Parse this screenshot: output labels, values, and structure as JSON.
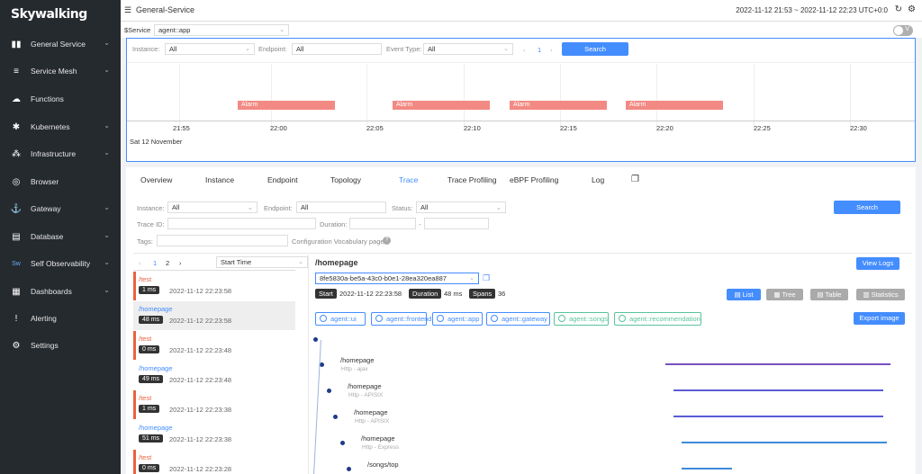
{
  "brand": "Skywalking",
  "sidebar": {
    "items": [
      {
        "label": "General Service",
        "icon": "general-service-icon",
        "glyph": "▮▮",
        "chev": true
      },
      {
        "label": "Service Mesh",
        "icon": "service-mesh-icon",
        "glyph": "≡",
        "chev": true
      },
      {
        "label": "Functions",
        "icon": "cloud-icon",
        "glyph": "☁",
        "chev": false
      },
      {
        "label": "Kubernetes",
        "icon": "kubernetes-icon",
        "glyph": "✱",
        "chev": true
      },
      {
        "label": "Infrastructure",
        "icon": "infrastructure-icon",
        "glyph": "⁂",
        "chev": true
      },
      {
        "label": "Browser",
        "icon": "globe-icon",
        "glyph": "◎",
        "chev": false
      },
      {
        "label": "Gateway",
        "icon": "gateway-icon",
        "glyph": "⚓",
        "chev": true
      },
      {
        "label": "Database",
        "icon": "database-icon",
        "glyph": "▤",
        "chev": true
      },
      {
        "label": "Self Observability",
        "icon": "self-observability-icon",
        "glyph": "Sw",
        "chev": true
      },
      {
        "label": "Dashboards",
        "icon": "dashboards-icon",
        "glyph": "▦",
        "chev": true
      },
      {
        "label": "Alerting",
        "icon": "alerting-icon",
        "glyph": "!",
        "chev": false
      },
      {
        "label": "Settings",
        "icon": "settings-icon",
        "glyph": "⚙",
        "chev": false
      }
    ]
  },
  "topbar": {
    "title": "General-Service",
    "time_range": "2022-11-12 21:53 ~ 2022-11-12 22:23",
    "timezone": "UTC+0:0"
  },
  "service_bar": {
    "label": "$Service",
    "value": "agent::app",
    "toggle_label": "V"
  },
  "events": {
    "instance_label": "Instance:",
    "instance_value": "All",
    "endpoint_label": "Endpoint:",
    "endpoint_value": "All",
    "event_type_label": "Event Type:",
    "event_type_value": "All",
    "page": "1",
    "search_label": "Search",
    "alarms": [
      "Alarm",
      "Alarm",
      "Alarm",
      "Alarm"
    ],
    "ticks": [
      "21:55",
      "22:00",
      "22:05",
      "22:10",
      "22:15",
      "22:20",
      "22:25",
      "22:30"
    ],
    "date_label": "Sat 12 November"
  },
  "tabs": [
    "Overview",
    "Instance",
    "Endpoint",
    "Topology",
    "Trace",
    "Trace Profiling",
    "eBPF Profiling",
    "Log"
  ],
  "active_tab": "Trace",
  "trace_filters": {
    "instance_label": "Instance:",
    "instance_value": "All",
    "endpoint_label": "Endpoint:",
    "endpoint_value": "All",
    "status_label": "Status:",
    "status_value": "All",
    "search_label": "Search",
    "trace_id_label": "Trace ID:",
    "duration_label": "Duration:",
    "duration_sep": "-",
    "tags_label": "Tags:",
    "vocab_label": "Configuration Vocabulary page"
  },
  "trace_list": {
    "page1": "1",
    "page2": "2",
    "sort_value": "Start Time",
    "items": [
      {
        "endpoint": "/test",
        "duration": "1 ms",
        "time": "2022-11-12 22:23:58",
        "error": true
      },
      {
        "endpoint": "/homepage",
        "duration": "48 ms",
        "time": "2022-11-12 22:23:58",
        "error": false
      },
      {
        "endpoint": "/test",
        "duration": "0 ms",
        "time": "2022-11-12 22:23:48",
        "error": true
      },
      {
        "endpoint": "/homepage",
        "duration": "49 ms",
        "time": "2022-11-12 22:23:48",
        "error": false
      },
      {
        "endpoint": "/test",
        "duration": "1 ms",
        "time": "2022-11-12 22:23:38",
        "error": true
      },
      {
        "endpoint": "/homepage",
        "duration": "51 ms",
        "time": "2022-11-12 22:23:38",
        "error": false
      },
      {
        "endpoint": "/test",
        "duration": "0 ms",
        "time": "2022-11-12 22:23:28",
        "error": true
      }
    ]
  },
  "trace_detail": {
    "endpoint": "/homepage",
    "view_logs_label": "View Logs",
    "trace_id": "8fe5830a-be5a-43c0-b0e1-28ea320ea887",
    "start_label": "Start",
    "start_value": "2022-11-12 22:23:58",
    "duration_label": "Duration",
    "duration_value": "48 ms",
    "spans_label": "Spans",
    "spans_value": "36",
    "view_buttons": [
      "List",
      "Tree",
      "Table",
      "Statistics"
    ],
    "services": [
      {
        "name": "agent::ui",
        "color": "blue"
      },
      {
        "name": "agent::frontend",
        "color": "blue"
      },
      {
        "name": "agent::app",
        "color": "blue"
      },
      {
        "name": "agent::gateway",
        "color": "blue"
      },
      {
        "name": "agent::songs",
        "color": "green"
      },
      {
        "name": "agent::recommendation",
        "color": "green"
      }
    ],
    "export_label": "Export image",
    "spans": [
      {
        "endpoint": "/homepage",
        "sub": "Http - ajax",
        "bar_color": "#7a4fbf"
      },
      {
        "endpoint": "/homepage",
        "sub": "Http - APISIX",
        "bar_color": "#5b5bd6"
      },
      {
        "endpoint": "/homepage",
        "sub": "Http - APISIX",
        "bar_color": "#5b5bd6"
      },
      {
        "endpoint": "/homepage",
        "sub": "Http - Express",
        "bar_color": "#3d8bdb"
      },
      {
        "endpoint": "/songs/top",
        "sub": "",
        "bar_color": "#3d8bdb"
      }
    ]
  },
  "colors": {
    "accent": "#448dfe",
    "error": "#e8623f",
    "alarm": "#f28a83",
    "sidebar": "#252a2f"
  }
}
